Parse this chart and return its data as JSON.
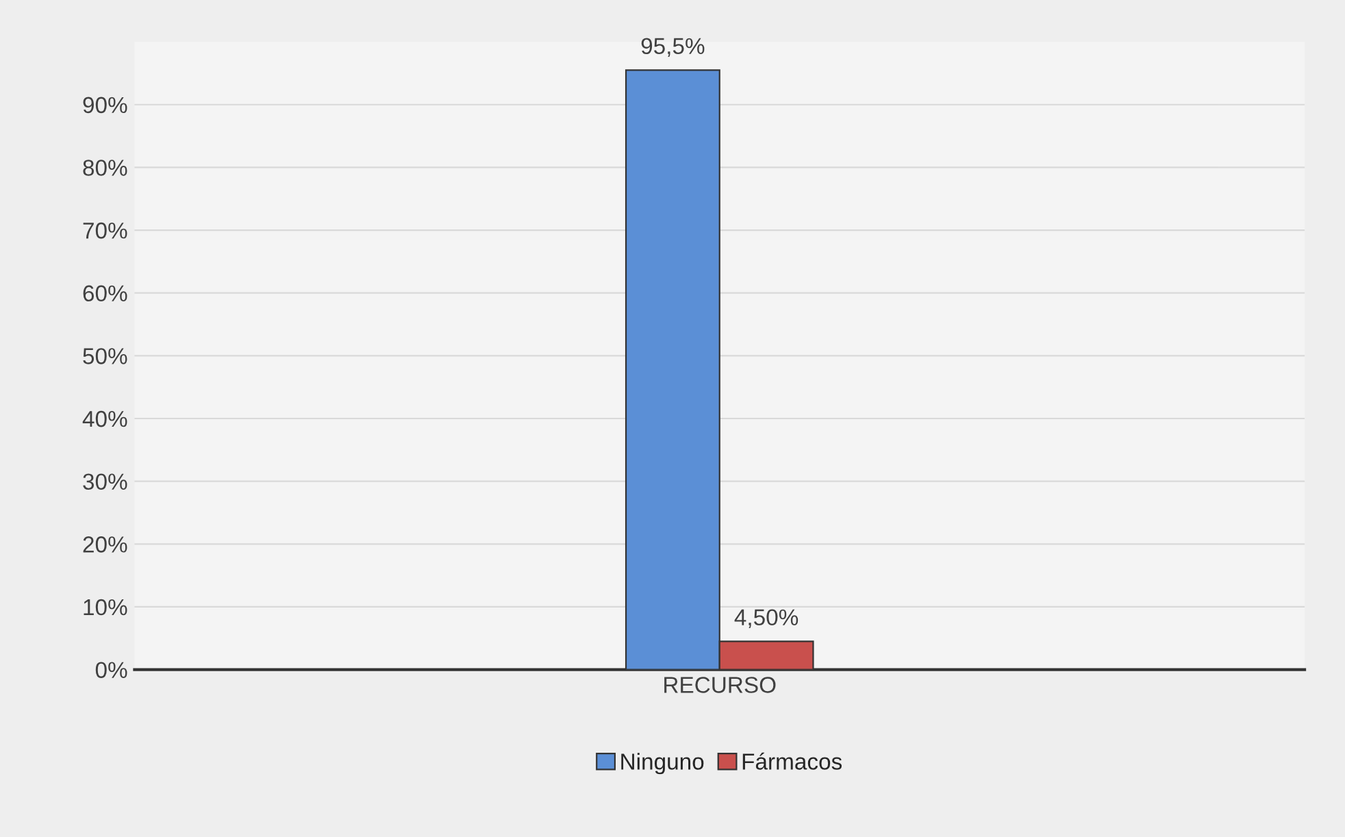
{
  "chart_data": {
    "type": "bar",
    "categories": [
      "RECURSO"
    ],
    "series": [
      {
        "name": "Ninguno",
        "color": "#5b8fd6",
        "values": [
          95.5
        ],
        "value_labels": [
          "95,5%"
        ]
      },
      {
        "name": "Fármacos",
        "color": "#c9504d",
        "values": [
          4.5
        ],
        "value_labels": [
          "4,50%"
        ]
      }
    ],
    "ylim": [
      0,
      100
    ],
    "yticks": [
      {
        "value": 0,
        "label": "0%"
      },
      {
        "value": 10,
        "label": "10%"
      },
      {
        "value": 20,
        "label": "20%"
      },
      {
        "value": 30,
        "label": "30%"
      },
      {
        "value": 40,
        "label": "40%"
      },
      {
        "value": 50,
        "label": "50%"
      },
      {
        "value": 60,
        "label": "60%"
      },
      {
        "value": 70,
        "label": "70%"
      },
      {
        "value": 80,
        "label": "80%"
      },
      {
        "value": 90,
        "label": "90%"
      }
    ],
    "grid": "y",
    "legend": "bottom"
  }
}
